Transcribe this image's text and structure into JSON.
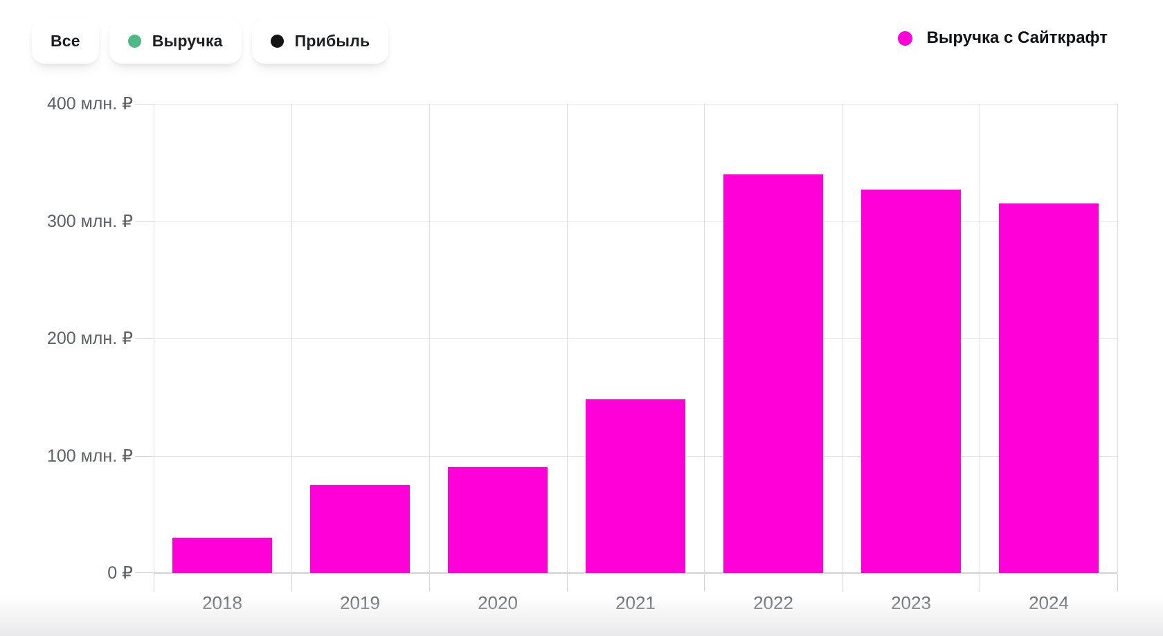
{
  "toolbar": {
    "filters": [
      {
        "label": "Все"
      },
      {
        "label": "Выручка",
        "dot_color": "#4FB884"
      },
      {
        "label": "Прибыль",
        "dot_color": "#141414"
      }
    ]
  },
  "legend": {
    "label": "Выручка с Сайткрафт",
    "dot_color": "#FF00D9"
  },
  "chart_data": {
    "type": "bar",
    "title": "",
    "series_name": "Выручка с Сайткрафт",
    "categories": [
      "2018",
      "2019",
      "2020",
      "2021",
      "2022",
      "2023",
      "2024"
    ],
    "values": [
      30,
      75,
      90,
      148,
      340,
      327,
      315
    ],
    "unit": "млн. ₽",
    "xlabel": "",
    "ylabel": "",
    "ylim": [
      0,
      400
    ],
    "yticks": [
      0,
      100,
      200,
      300,
      400
    ],
    "ytick_labels": [
      "0 ₽",
      "100 млн. ₽",
      "200 млн. ₽",
      "300 млн. ₽",
      "400 млн. ₽"
    ],
    "grid": true,
    "bar_color": "#FF00D9",
    "legend_position": "top-right"
  }
}
